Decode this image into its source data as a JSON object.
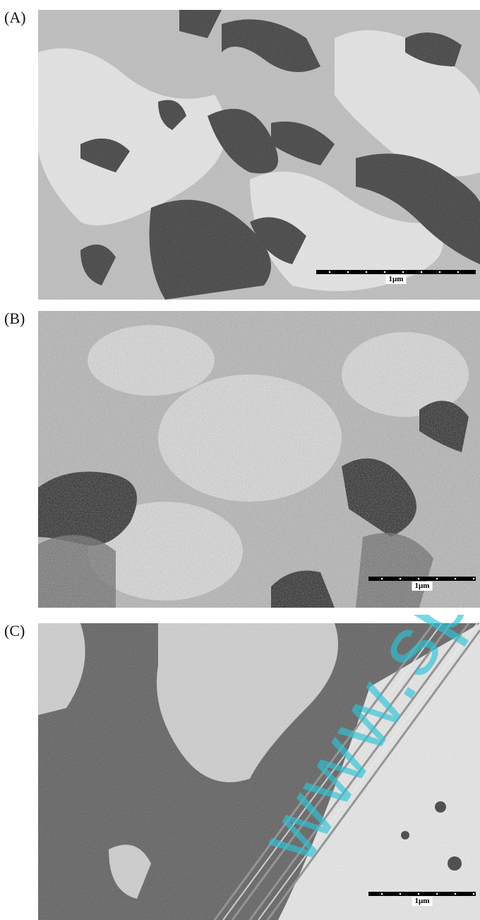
{
  "panels": [
    {
      "label": "(A)",
      "scale_text": "1μm"
    },
    {
      "label": "(B)",
      "scale_text": "1μm"
    },
    {
      "label": "(C)",
      "scale_text": "1μm"
    }
  ],
  "watermark_text": "www.sp",
  "colors": {
    "surface_light": "#dcdcdc",
    "surface_dark": "#3c3c3c",
    "watermark": "#2ec4d6"
  }
}
